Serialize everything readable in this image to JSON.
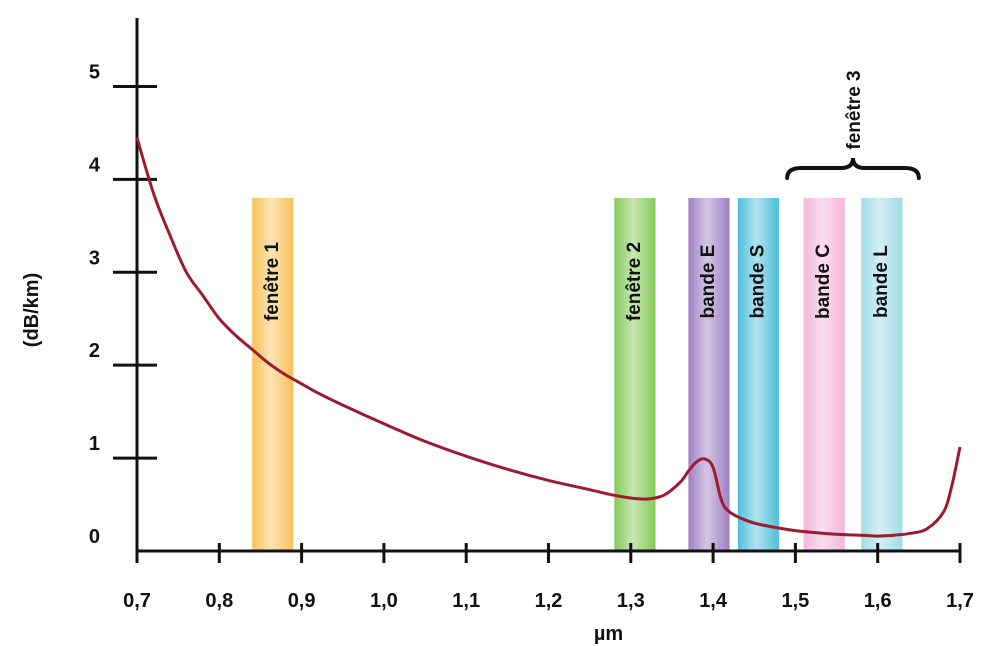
{
  "chart_data": {
    "type": "line",
    "xlabel": "µm",
    "ylabel": "(dB/km)",
    "xlim": [
      0.7,
      1.7
    ],
    "ylim": [
      0,
      5.5
    ],
    "x_ticks": [
      {
        "value": 0.7,
        "label": "0,7"
      },
      {
        "value": 0.8,
        "label": "0,8"
      },
      {
        "value": 0.9,
        "label": "0,9"
      },
      {
        "value": 1.0,
        "label": "1,0"
      },
      {
        "value": 1.1,
        "label": "1,1"
      },
      {
        "value": 1.2,
        "label": "1,2"
      },
      {
        "value": 1.3,
        "label": "1,3"
      },
      {
        "value": 1.4,
        "label": "1,4"
      },
      {
        "value": 1.5,
        "label": "1,5"
      },
      {
        "value": 1.6,
        "label": "1,6"
      },
      {
        "value": 1.7,
        "label": "1,7"
      }
    ],
    "y_ticks": [
      {
        "value": 0,
        "label": "0"
      },
      {
        "value": 1,
        "label": "1"
      },
      {
        "value": 2,
        "label": "2"
      },
      {
        "value": 3,
        "label": "3"
      },
      {
        "value": 4,
        "label": "4"
      },
      {
        "value": 5,
        "label": "5"
      }
    ],
    "series": [
      {
        "color": "#9b1b30",
        "x": [
          0.7,
          0.72,
          0.74,
          0.76,
          0.78,
          0.8,
          0.82,
          0.84,
          0.86,
          0.88,
          0.9,
          0.92,
          0.95,
          1.0,
          1.05,
          1.1,
          1.15,
          1.2,
          1.25,
          1.28,
          1.3,
          1.32,
          1.34,
          1.36,
          1.37,
          1.38,
          1.39,
          1.4,
          1.41,
          1.42,
          1.44,
          1.46,
          1.5,
          1.55,
          1.58,
          1.6,
          1.62,
          1.64,
          1.66,
          1.68,
          1.69,
          1.7
        ],
        "y": [
          4.45,
          3.85,
          3.4,
          3.0,
          2.75,
          2.5,
          2.32,
          2.17,
          2.02,
          1.9,
          1.8,
          1.7,
          1.57,
          1.37,
          1.18,
          1.02,
          0.88,
          0.76,
          0.66,
          0.6,
          0.57,
          0.56,
          0.6,
          0.74,
          0.86,
          0.96,
          0.99,
          0.9,
          0.55,
          0.42,
          0.33,
          0.28,
          0.22,
          0.18,
          0.17,
          0.16,
          0.17,
          0.19,
          0.24,
          0.42,
          0.7,
          1.12
        ]
      }
    ],
    "bands": [
      {
        "label": "fenêtre 1",
        "x_from": 0.84,
        "x_to": 0.89,
        "color": "#f6b73c"
      },
      {
        "label": "fenêtre 2",
        "x_from": 1.28,
        "x_to": 1.33,
        "color": "#6fbf3a"
      },
      {
        "label": "bande E",
        "x_from": 1.37,
        "x_to": 1.42,
        "color": "#8e6ab8"
      },
      {
        "label": "bande S",
        "x_from": 1.43,
        "x_to": 1.48,
        "color": "#2fb4d6"
      },
      {
        "label": "bande C",
        "x_from": 1.51,
        "x_to": 1.56,
        "color": "#f2a9d6"
      },
      {
        "label": "bande L",
        "x_from": 1.58,
        "x_to": 1.63,
        "color": "#8fd6e3"
      }
    ],
    "brace": {
      "label": "fenêtre 3",
      "x_from": 1.49,
      "x_to": 1.65
    }
  }
}
